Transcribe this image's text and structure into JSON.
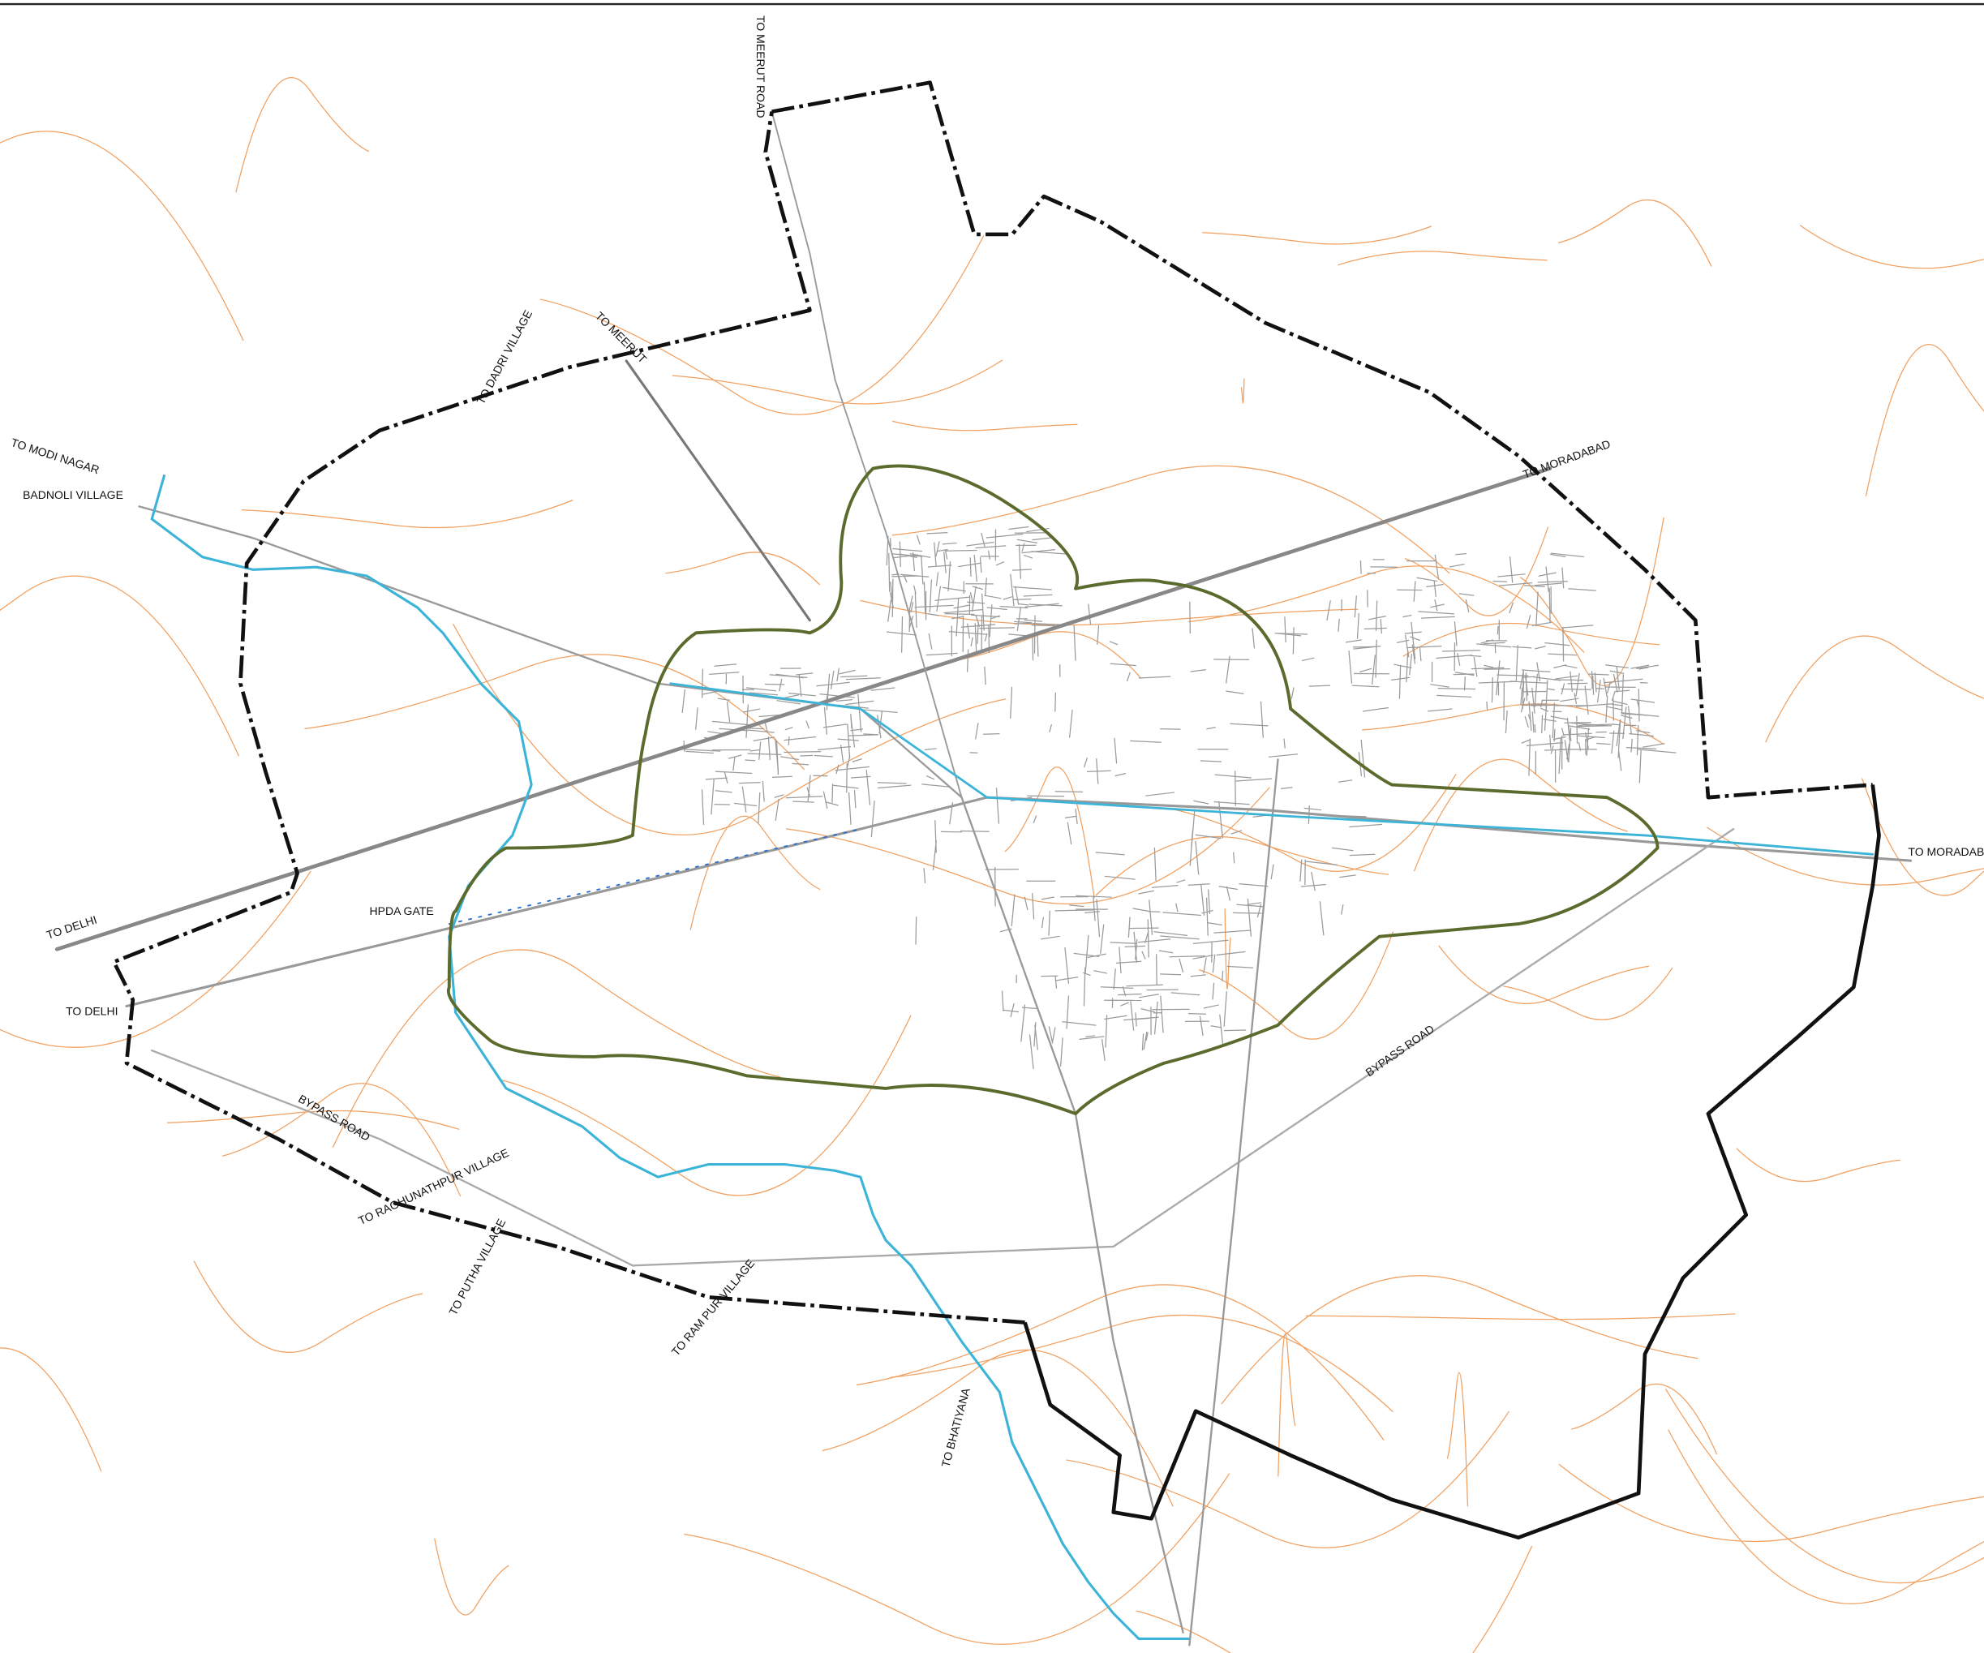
{
  "labels": [
    "TO MEERUT ROAD",
    "TO DADRI VILLAGE",
    "TO MEERUT",
    "TO MODI NAGAR",
    "BADNOLI VILLAGE",
    "TO MORADABAD",
    "TO MORADABA",
    "TO DELHI",
    "TO DELHI",
    "BYPASS ROAD",
    "BYPASS ROAD",
    "TO RAGHUNATHPUR VILLAGE",
    "TO PUTHA VILLAGE",
    "TO RAM PUR VILLAGE",
    "HPDA GATE",
    "TO BHATIYANA"
  ]
}
